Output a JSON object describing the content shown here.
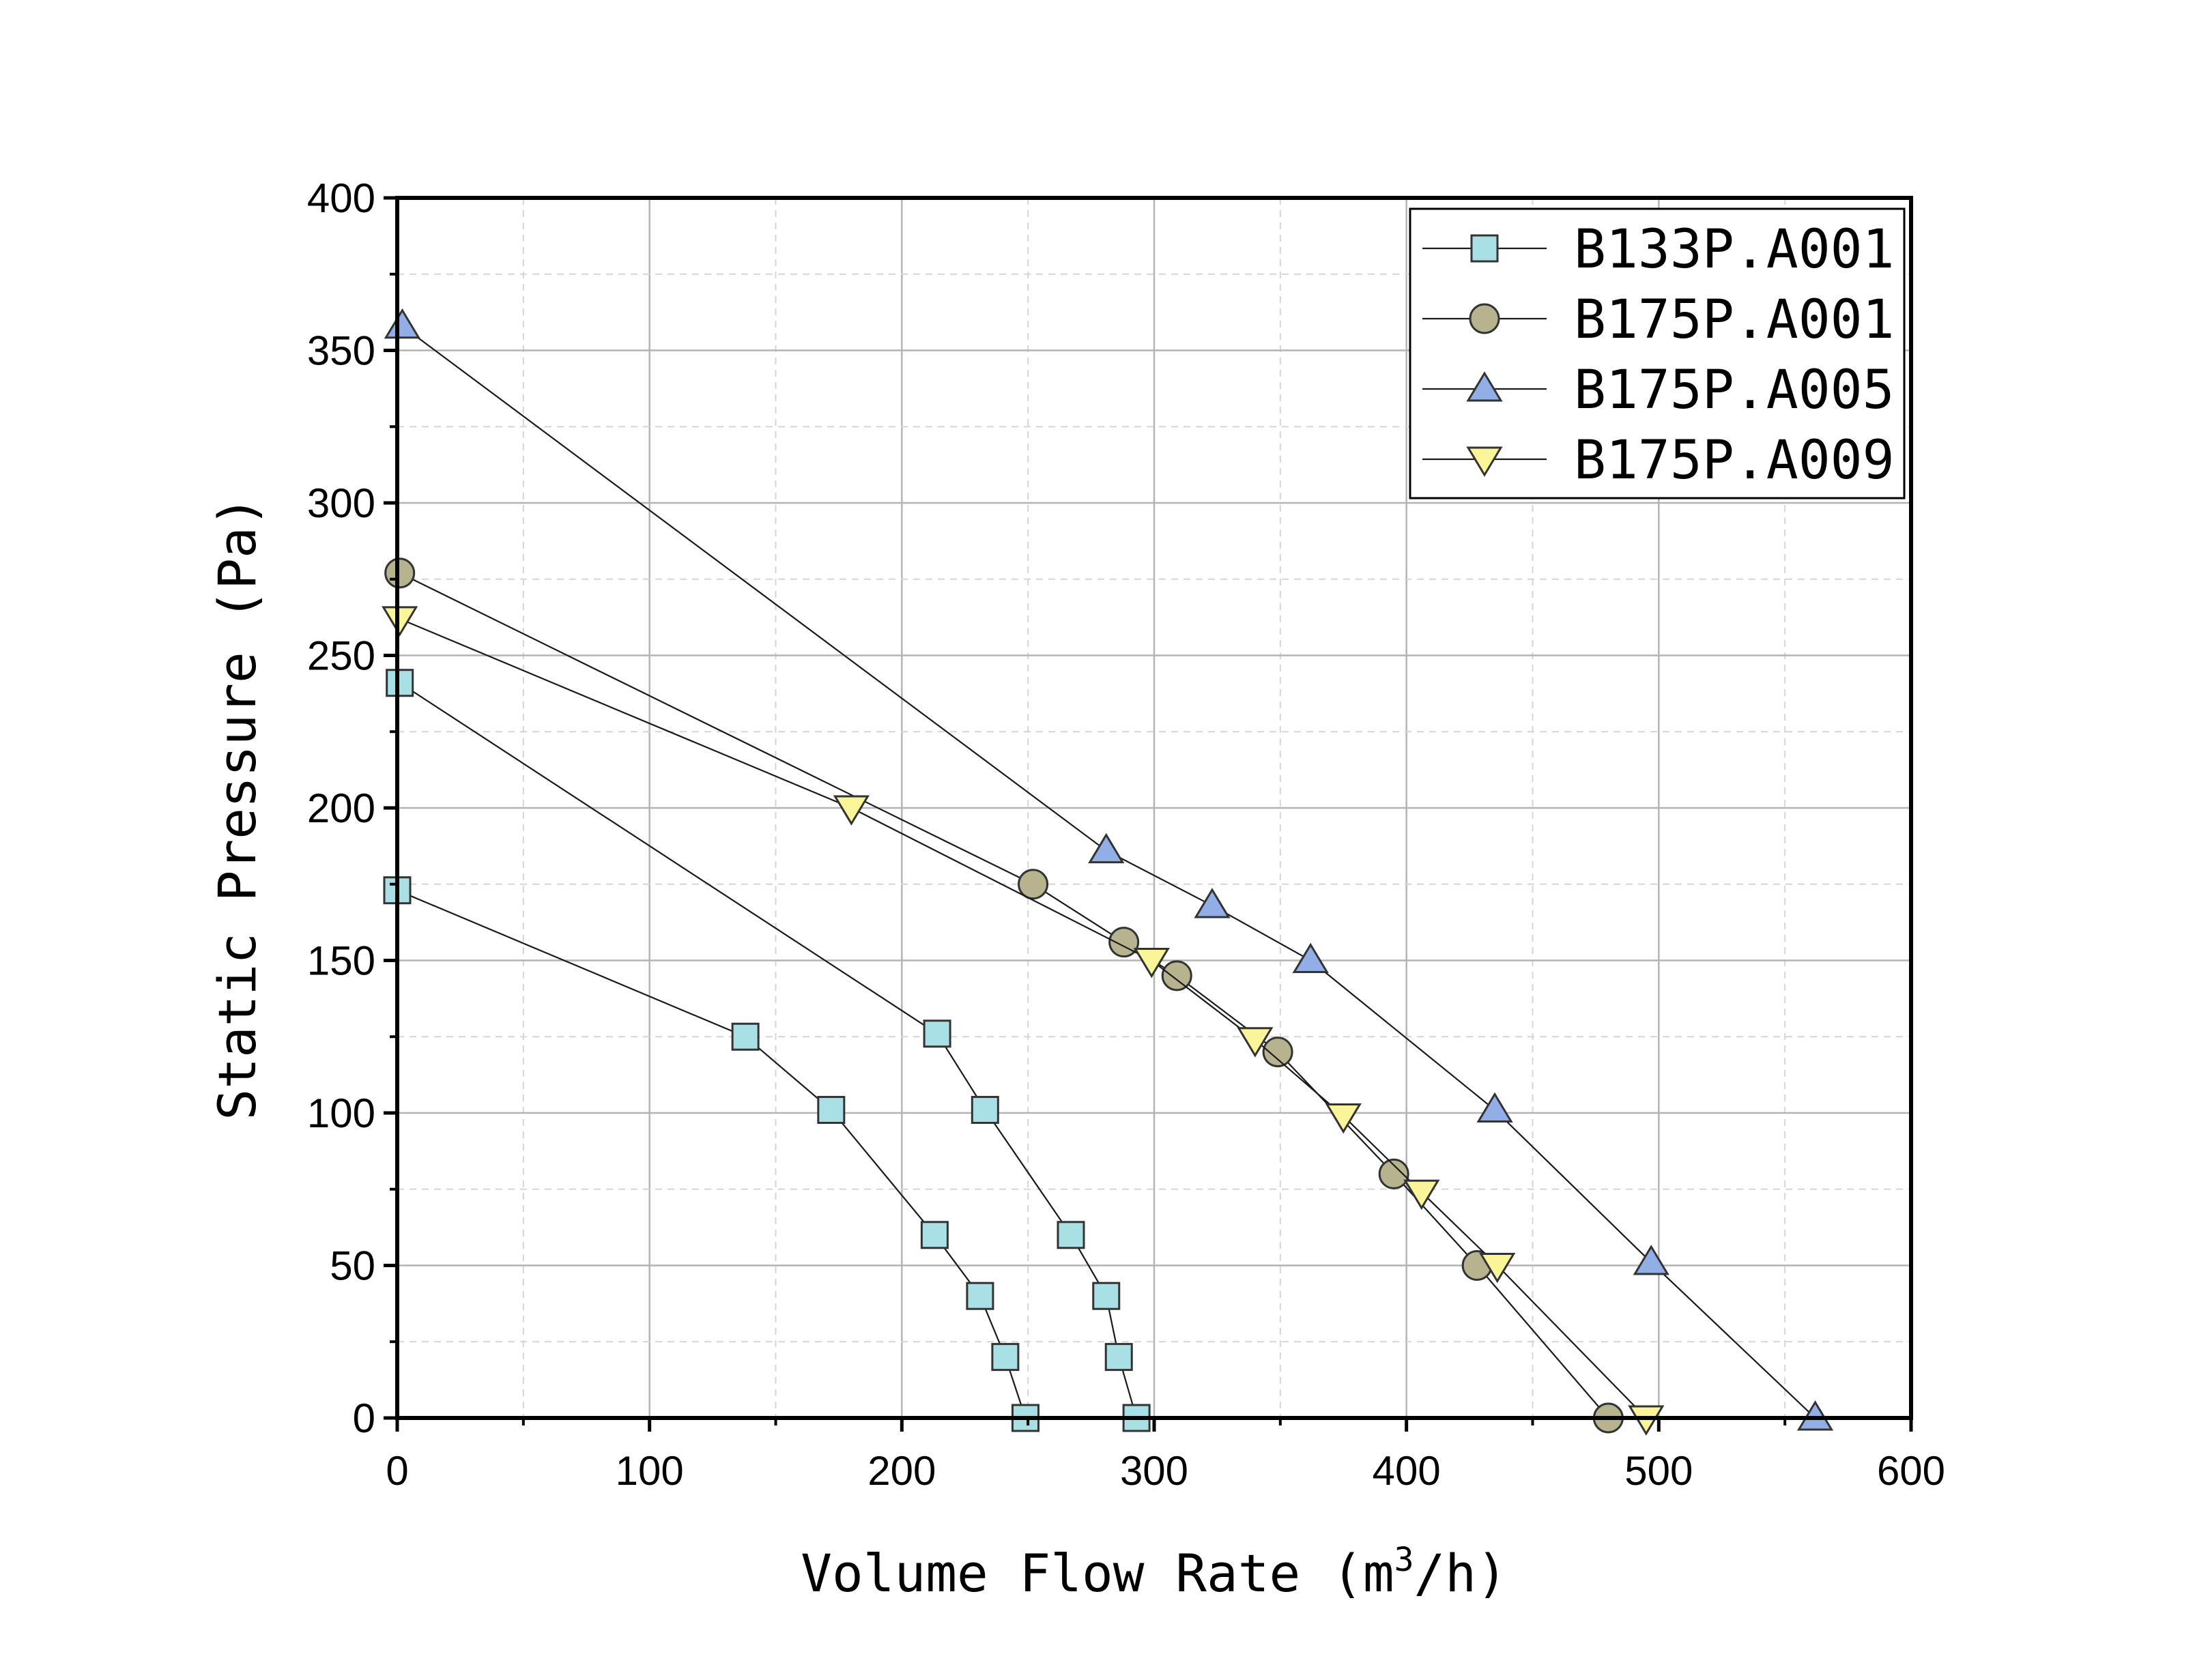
{
  "chart_data": {
    "type": "line",
    "title": "",
    "xlabel": "Volume Flow Rate (m",
    "xlabel_sup": "3",
    "xlabel_tail": "/h)",
    "ylabel": "Static Pressure (Pa)",
    "xlim": [
      0,
      600
    ],
    "ylim": [
      0,
      400
    ],
    "x_ticks": [
      0,
      100,
      200,
      300,
      400,
      500,
      600
    ],
    "y_ticks": [
      0,
      50,
      100,
      150,
      200,
      250,
      300,
      350,
      400
    ],
    "grid": true,
    "legend_position": "top-right",
    "series": [
      {
        "name": "B133P.A001",
        "marker": "square",
        "color": "#a9e0e6",
        "curves": [
          [
            [
              0,
              173
            ],
            [
              138,
              125
            ],
            [
              172,
              101
            ],
            [
              213,
              60
            ],
            [
              231,
              40
            ],
            [
              241,
              20
            ],
            [
              249,
              0
            ]
          ],
          [
            [
              1,
              241
            ],
            [
              214,
              126
            ],
            [
              233,
              101
            ],
            [
              267,
              60
            ],
            [
              281,
              40
            ],
            [
              286,
              20
            ],
            [
              293,
              0
            ]
          ]
        ]
      },
      {
        "name": "B175P.A001",
        "marker": "circle",
        "color": "#b7b38f",
        "curves": [
          [
            [
              1,
              277
            ],
            [
              252,
              175
            ],
            [
              288,
              156
            ],
            [
              309,
              145
            ],
            [
              349,
              120
            ],
            [
              395,
              80
            ],
            [
              428,
              50
            ],
            [
              480,
              0
            ]
          ]
        ]
      },
      {
        "name": "B175P.A005",
        "marker": "triangle-up",
        "color": "#92aee6",
        "curves": [
          [
            [
              2,
              358
            ],
            [
              281,
              186
            ],
            [
              323,
              168
            ],
            [
              362,
              150
            ],
            [
              435,
              101
            ],
            [
              497,
              51
            ],
            [
              562,
              0
            ]
          ]
        ]
      },
      {
        "name": "B175P.A009",
        "marker": "triangle-down",
        "color": "#fbf59a",
        "curves": [
          [
            [
              1,
              262
            ],
            [
              180,
              200
            ],
            [
              299,
              150
            ],
            [
              340,
              124
            ],
            [
              375,
              99
            ],
            [
              406,
              74
            ],
            [
              436,
              50
            ],
            [
              495,
              0
            ]
          ]
        ]
      }
    ]
  }
}
